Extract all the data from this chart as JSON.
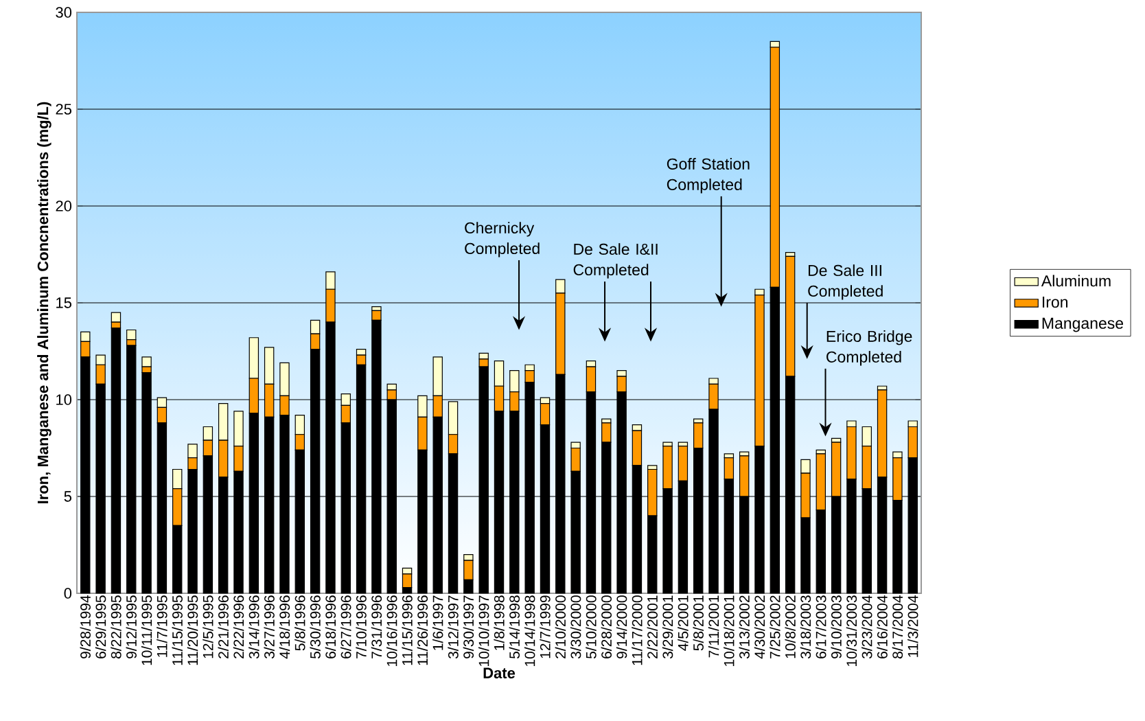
{
  "chart_data": {
    "type": "bar",
    "stacked": true,
    "xlabel": "Date",
    "ylabel": "Iron, Manganese and Aluminum Concnentrations (mg/L)",
    "categories": [
      "9/28/1994",
      "6/29/1995",
      "8/22/1995",
      "9/12/1995",
      "10/11/1995",
      "11/7/1995",
      "11/15/1995",
      "11/20/1995",
      "12/5/1995",
      "2/21/1996",
      "2/22/1996",
      "3/14/1996",
      "3/27/1996",
      "4/18/1996",
      "5/8/1996",
      "5/30/1996",
      "6/18/1996",
      "6/27/1996",
      "7/10/1996",
      "7/31/1996",
      "10/16/1996",
      "11/15/1996",
      "11/26/1996",
      "1/6/1997",
      "3/12/1997",
      "9/30/1997",
      "10/10/1997",
      "1/8/1998",
      "5/14/1998",
      "10/14/1998",
      "12/7/1999",
      "2/10/2000",
      "3/30/2000",
      "5/10/2000",
      "6/28/2000",
      "9/14/2000",
      "11/17/2000",
      "2/22/2001",
      "3/29/2001",
      "4/5/2001",
      "5/8/2001",
      "7/11/2001",
      "10/18/2001",
      "3/13/2002",
      "4/30/2002",
      "7/25/2002",
      "10/8/2002",
      "3/18/2003",
      "6/17/2003",
      "9/10/2003",
      "10/31/2003",
      "3/23/2004",
      "6/16/2004",
      "8/17/2004",
      "11/3/2004"
    ],
    "series": [
      {
        "name": "Manganese",
        "color": "#000000",
        "values": [
          12.2,
          10.8,
          13.7,
          12.8,
          11.4,
          8.8,
          3.5,
          6.4,
          7.1,
          6.0,
          6.3,
          9.3,
          9.1,
          9.2,
          7.4,
          12.6,
          14.0,
          8.8,
          11.8,
          14.1,
          10.0,
          0.3,
          7.4,
          9.1,
          7.2,
          0.7,
          11.7,
          9.4,
          9.4,
          10.9,
          8.7,
          11.3,
          6.3,
          10.4,
          7.8,
          10.4,
          6.6,
          4.0,
          5.4,
          5.8,
          7.5,
          9.5,
          5.9,
          5.0,
          7.6,
          15.8,
          11.2,
          3.9,
          4.3,
          5.0,
          5.9,
          5.4,
          6.0,
          4.8,
          7.0
        ]
      },
      {
        "name": "Iron",
        "color": "#ff9900",
        "values": [
          0.8,
          1.0,
          0.3,
          0.3,
          0.3,
          0.8,
          1.9,
          0.6,
          0.8,
          1.9,
          1.3,
          1.8,
          1.7,
          1.0,
          0.8,
          0.8,
          1.7,
          0.9,
          0.5,
          0.5,
          0.5,
          0.7,
          1.7,
          1.1,
          1.0,
          1.0,
          0.4,
          1.3,
          1.0,
          0.6,
          1.1,
          4.2,
          1.2,
          1.3,
          1.0,
          0.8,
          1.8,
          2.4,
          2.2,
          1.8,
          1.3,
          1.3,
          1.1,
          2.1,
          7.8,
          12.4,
          6.2,
          2.3,
          2.9,
          2.8,
          2.7,
          2.2,
          4.5,
          2.2,
          1.6
        ]
      },
      {
        "name": "Aluminum",
        "color": "#ffffcc",
        "values": [
          0.5,
          0.5,
          0.5,
          0.5,
          0.5,
          0.5,
          1.0,
          0.7,
          0.7,
          1.9,
          1.8,
          2.1,
          1.9,
          1.7,
          1.0,
          0.7,
          0.9,
          0.6,
          0.3,
          0.2,
          0.3,
          0.3,
          1.1,
          2.0,
          1.7,
          0.3,
          0.3,
          1.3,
          1.1,
          0.3,
          0.3,
          0.7,
          0.3,
          0.3,
          0.2,
          0.3,
          0.3,
          0.2,
          0.2,
          0.2,
          0.2,
          0.3,
          0.2,
          0.2,
          0.3,
          0.3,
          0.2,
          0.7,
          0.2,
          0.2,
          0.3,
          1.0,
          0.2,
          0.3,
          0.3
        ]
      }
    ],
    "ylim": [
      0,
      30
    ],
    "yticks": [
      0,
      5,
      10,
      15,
      20,
      25,
      30
    ],
    "grid": "y",
    "legend": "right",
    "annotations": [
      "Chernicky Completed",
      "De Sale I&II Completed",
      "Goff Station Completed",
      "De Sale III Completed",
      "Erico Bridge Completed"
    ]
  }
}
